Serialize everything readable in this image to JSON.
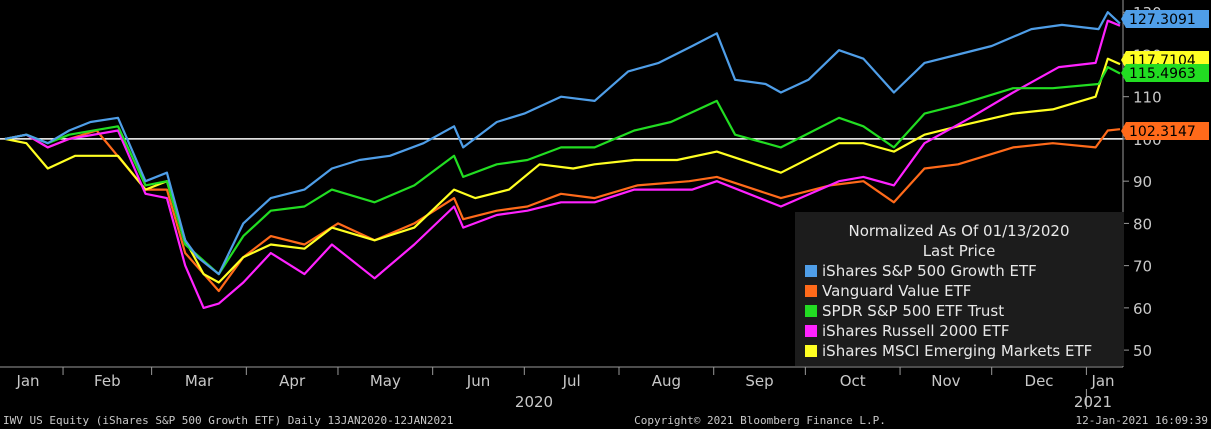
{
  "chart_data": {
    "type": "line",
    "legend": {
      "title_line1": "Normalized As Of 01/13/2020",
      "title_line2": "Last Price",
      "placement": "bottom-right"
    },
    "x_month_labels": [
      "Jan",
      "Feb",
      "Mar",
      "Apr",
      "May",
      "Jun",
      "Jul",
      "Aug",
      "Sep",
      "Oct",
      "Nov",
      "Dec",
      "Jan"
    ],
    "x_year_labels": [
      "2020",
      "2021"
    ],
    "y_ticks": [
      50,
      60,
      70,
      80,
      90,
      100,
      110,
      120,
      130
    ],
    "ylim": [
      46,
      131
    ],
    "xlim": [
      "2020-01-13",
      "2021-01-12"
    ],
    "reference_line": 100,
    "series": [
      {
        "name": "iShares S&P 500 Growth ETF",
        "color": "#4f9ee8",
        "last_value": "127.3091",
        "points": [
          [
            "2020-01-13",
            100
          ],
          [
            "2020-01-20",
            101
          ],
          [
            "2020-01-27",
            99
          ],
          [
            "2020-02-03",
            102
          ],
          [
            "2020-02-10",
            104
          ],
          [
            "2020-02-19",
            105
          ],
          [
            "2020-02-28",
            90
          ],
          [
            "2020-03-06",
            92
          ],
          [
            "2020-03-12",
            76
          ],
          [
            "2020-03-16",
            72
          ],
          [
            "2020-03-23",
            68
          ],
          [
            "2020-03-31",
            80
          ],
          [
            "2020-04-09",
            86
          ],
          [
            "2020-04-20",
            88
          ],
          [
            "2020-04-29",
            93
          ],
          [
            "2020-05-08",
            95
          ],
          [
            "2020-05-18",
            96
          ],
          [
            "2020-05-29",
            99
          ],
          [
            "2020-06-08",
            103
          ],
          [
            "2020-06-11",
            98
          ],
          [
            "2020-06-22",
            104
          ],
          [
            "2020-07-01",
            106
          ],
          [
            "2020-07-13",
            110
          ],
          [
            "2020-07-24",
            109
          ],
          [
            "2020-08-04",
            116
          ],
          [
            "2020-08-14",
            118
          ],
          [
            "2020-08-25",
            122
          ],
          [
            "2020-09-02",
            125
          ],
          [
            "2020-09-08",
            114
          ],
          [
            "2020-09-18",
            113
          ],
          [
            "2020-09-23",
            111
          ],
          [
            "2020-10-02",
            114
          ],
          [
            "2020-10-12",
            121
          ],
          [
            "2020-10-20",
            119
          ],
          [
            "2020-10-30",
            111
          ],
          [
            "2020-11-09",
            118
          ],
          [
            "2020-11-20",
            120
          ],
          [
            "2020-12-01",
            122
          ],
          [
            "2020-12-14",
            126
          ],
          [
            "2020-12-24",
            127
          ],
          [
            "2021-01-05",
            126
          ],
          [
            "2021-01-08",
            130
          ],
          [
            "2021-01-12",
            127.3091
          ]
        ]
      },
      {
        "name": "Vanguard Value ETF",
        "color": "#ff6a1a",
        "last_value": "102.3147",
        "points": [
          [
            "2020-01-13",
            100
          ],
          [
            "2020-01-20",
            101
          ],
          [
            "2020-01-27",
            98
          ],
          [
            "2020-02-03",
            100
          ],
          [
            "2020-02-12",
            102
          ],
          [
            "2020-02-28",
            88
          ],
          [
            "2020-03-06",
            88
          ],
          [
            "2020-03-12",
            73
          ],
          [
            "2020-03-23",
            64
          ],
          [
            "2020-03-31",
            72
          ],
          [
            "2020-04-09",
            77
          ],
          [
            "2020-04-20",
            75
          ],
          [
            "2020-05-01",
            80
          ],
          [
            "2020-05-13",
            76
          ],
          [
            "2020-05-26",
            80
          ],
          [
            "2020-06-08",
            86
          ],
          [
            "2020-06-11",
            81
          ],
          [
            "2020-06-22",
            83
          ],
          [
            "2020-07-02",
            84
          ],
          [
            "2020-07-13",
            87
          ],
          [
            "2020-07-24",
            86
          ],
          [
            "2020-08-07",
            89
          ],
          [
            "2020-08-24",
            90
          ],
          [
            "2020-09-02",
            91
          ],
          [
            "2020-09-23",
            86
          ],
          [
            "2020-10-09",
            89
          ],
          [
            "2020-10-20",
            90
          ],
          [
            "2020-10-30",
            85
          ],
          [
            "2020-11-09",
            93
          ],
          [
            "2020-11-20",
            94
          ],
          [
            "2020-12-08",
            98
          ],
          [
            "2020-12-21",
            99
          ],
          [
            "2021-01-04",
            98
          ],
          [
            "2021-01-08",
            102
          ],
          [
            "2021-01-12",
            102.3147
          ]
        ]
      },
      {
        "name": "SPDR S&P 500 ETF Trust",
        "color": "#22dd22",
        "last_value": "115.4963",
        "points": [
          [
            "2020-01-13",
            100
          ],
          [
            "2020-01-20",
            101
          ],
          [
            "2020-01-27",
            99
          ],
          [
            "2020-02-03",
            101
          ],
          [
            "2020-02-19",
            103
          ],
          [
            "2020-02-28",
            89
          ],
          [
            "2020-03-06",
            90
          ],
          [
            "2020-03-12",
            75
          ],
          [
            "2020-03-23",
            68
          ],
          [
            "2020-03-31",
            77
          ],
          [
            "2020-04-09",
            83
          ],
          [
            "2020-04-20",
            84
          ],
          [
            "2020-04-29",
            88
          ],
          [
            "2020-05-13",
            85
          ],
          [
            "2020-05-26",
            89
          ],
          [
            "2020-06-08",
            96
          ],
          [
            "2020-06-11",
            91
          ],
          [
            "2020-06-22",
            94
          ],
          [
            "2020-07-02",
            95
          ],
          [
            "2020-07-13",
            98
          ],
          [
            "2020-07-24",
            98
          ],
          [
            "2020-08-06",
            102
          ],
          [
            "2020-08-18",
            104
          ],
          [
            "2020-09-02",
            109
          ],
          [
            "2020-09-08",
            101
          ],
          [
            "2020-09-23",
            98
          ],
          [
            "2020-10-12",
            105
          ],
          [
            "2020-10-20",
            103
          ],
          [
            "2020-10-30",
            98
          ],
          [
            "2020-11-09",
            106
          ],
          [
            "2020-11-20",
            108
          ],
          [
            "2020-12-08",
            112
          ],
          [
            "2020-12-21",
            112
          ],
          [
            "2021-01-05",
            113
          ],
          [
            "2021-01-08",
            117
          ],
          [
            "2021-01-12",
            115.4963
          ]
        ]
      },
      {
        "name": "iShares Russell 2000 ETF",
        "color": "#ff22ff",
        "last_value": "126.8",
        "points": [
          [
            "2020-01-13",
            100
          ],
          [
            "2020-01-20",
            101
          ],
          [
            "2020-01-27",
            98
          ],
          [
            "2020-02-03",
            100
          ],
          [
            "2020-02-19",
            102
          ],
          [
            "2020-02-28",
            87
          ],
          [
            "2020-03-06",
            86
          ],
          [
            "2020-03-12",
            70
          ],
          [
            "2020-03-18",
            60
          ],
          [
            "2020-03-23",
            61
          ],
          [
            "2020-03-31",
            66
          ],
          [
            "2020-04-09",
            73
          ],
          [
            "2020-04-20",
            68
          ],
          [
            "2020-04-29",
            75
          ],
          [
            "2020-05-13",
            67
          ],
          [
            "2020-05-26",
            75
          ],
          [
            "2020-06-08",
            84
          ],
          [
            "2020-06-11",
            79
          ],
          [
            "2020-06-22",
            82
          ],
          [
            "2020-07-02",
            83
          ],
          [
            "2020-07-13",
            85
          ],
          [
            "2020-07-24",
            85
          ],
          [
            "2020-08-06",
            88
          ],
          [
            "2020-08-25",
            88
          ],
          [
            "2020-09-02",
            90
          ],
          [
            "2020-09-23",
            84
          ],
          [
            "2020-10-12",
            90
          ],
          [
            "2020-10-20",
            91
          ],
          [
            "2020-10-30",
            89
          ],
          [
            "2020-11-09",
            99
          ],
          [
            "2020-11-24",
            105
          ],
          [
            "2020-12-08",
            111
          ],
          [
            "2020-12-23",
            117
          ],
          [
            "2021-01-04",
            118
          ],
          [
            "2021-01-08",
            128
          ],
          [
            "2021-01-12",
            126.8
          ]
        ]
      },
      {
        "name": "iShares MSCI Emerging Markets ETF",
        "color": "#ffff22",
        "last_value": "117.7104",
        "points": [
          [
            "2020-01-13",
            100
          ],
          [
            "2020-01-20",
            99
          ],
          [
            "2020-01-27",
            93
          ],
          [
            "2020-02-05",
            96
          ],
          [
            "2020-02-19",
            96
          ],
          [
            "2020-02-28",
            88
          ],
          [
            "2020-03-06",
            90
          ],
          [
            "2020-03-12",
            76
          ],
          [
            "2020-03-18",
            68
          ],
          [
            "2020-03-23",
            66
          ],
          [
            "2020-03-31",
            72
          ],
          [
            "2020-04-09",
            75
          ],
          [
            "2020-04-20",
            74
          ],
          [
            "2020-04-29",
            79
          ],
          [
            "2020-05-13",
            76
          ],
          [
            "2020-05-26",
            79
          ],
          [
            "2020-06-08",
            88
          ],
          [
            "2020-06-15",
            86
          ],
          [
            "2020-06-26",
            88
          ],
          [
            "2020-07-06",
            94
          ],
          [
            "2020-07-17",
            93
          ],
          [
            "2020-07-24",
            94
          ],
          [
            "2020-08-06",
            95
          ],
          [
            "2020-08-20",
            95
          ],
          [
            "2020-09-02",
            97
          ],
          [
            "2020-09-23",
            92
          ],
          [
            "2020-10-12",
            99
          ],
          [
            "2020-10-20",
            99
          ],
          [
            "2020-10-30",
            97
          ],
          [
            "2020-11-09",
            101
          ],
          [
            "2020-11-20",
            103
          ],
          [
            "2020-12-08",
            106
          ],
          [
            "2020-12-21",
            107
          ],
          [
            "2021-01-04",
            110
          ],
          [
            "2021-01-08",
            119
          ],
          [
            "2021-01-12",
            117.7104
          ]
        ]
      }
    ]
  },
  "footer": {
    "left": "IWV US Equity (iShares S&P 500 Growth ETF)  Daily 13JAN2020-12JAN2021",
    "center": "Copyright© 2021 Bloomberg Finance L.P.",
    "right": "12-Jan-2021 16:09:39"
  }
}
